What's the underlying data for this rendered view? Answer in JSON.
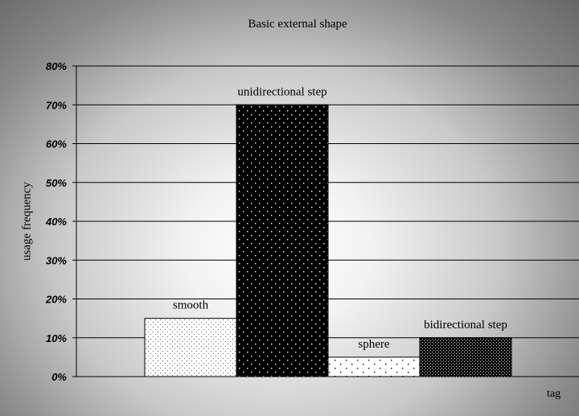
{
  "chart_data": {
    "type": "bar",
    "title": "Basic external shape",
    "xlabel": "tag",
    "ylabel": "usage frequency",
    "categories": [
      "smooth",
      "unidirectional step",
      "sphere",
      "bidirectional step"
    ],
    "values": [
      15,
      70,
      5,
      10
    ],
    "ylim": [
      0,
      80
    ],
    "yticks": [
      "0%",
      "10%",
      "20%",
      "30%",
      "40%",
      "50%",
      "60%",
      "70%",
      "80%"
    ],
    "grid": true,
    "legend": "none"
  }
}
